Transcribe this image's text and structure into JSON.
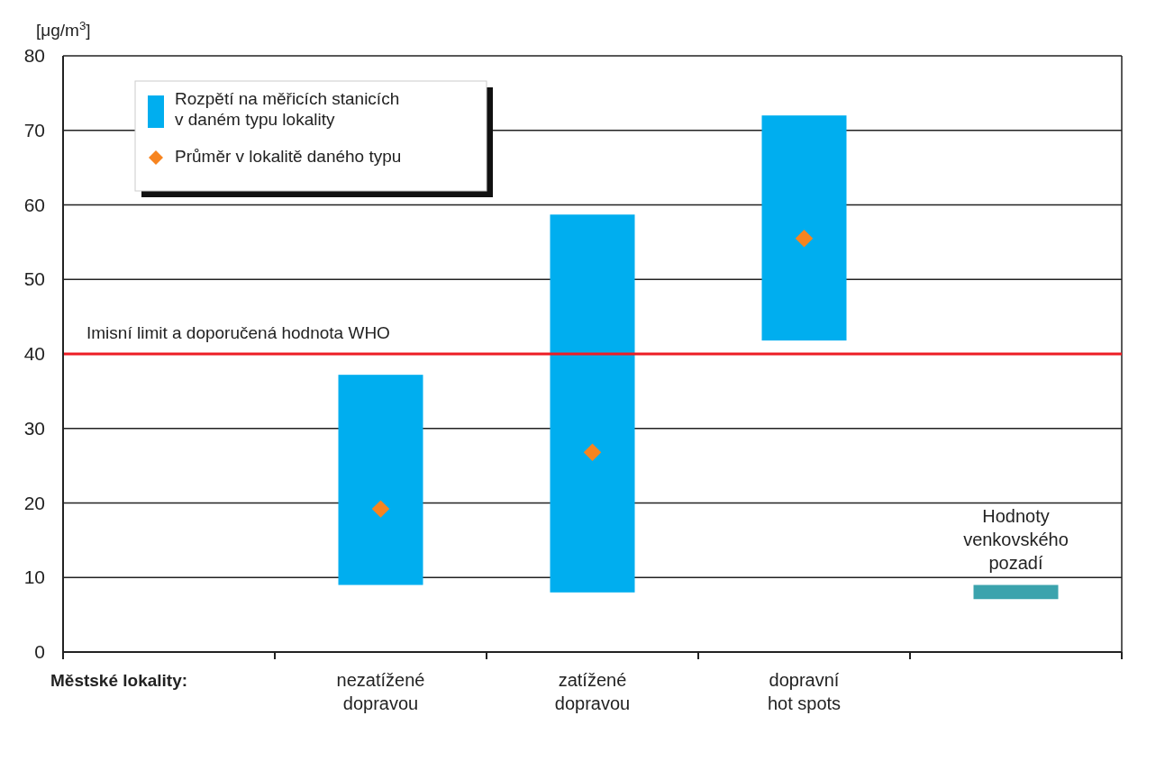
{
  "chart_data": {
    "type": "bar",
    "ylabel": "[μg/m$^{3}$]",
    "xlabel": "Městské lokality:",
    "categories": [
      null,
      "nezatížené\ndopravou",
      "zatížené\ndopravou",
      "dopravní\nhot spots",
      null
    ],
    "series": [
      {
        "name": "Rozpětí na měřicích stanicích\nv daném typu lokality",
        "color": "#00aeef",
        "colors": [
          null,
          "#00aeef",
          "#00aeef",
          "#00aeef",
          "#3ba3ad"
        ],
        "base": [
          null,
          9,
          8,
          41.8,
          7.1
        ],
        "values": [
          null,
          28.2,
          50.7,
          30.2,
          1.9
        ]
      },
      {
        "name": "Průměr v lokalitě daného typu",
        "type": "scatter",
        "color": "#f7841f",
        "marker": "diamond",
        "x": [
          "nezatížené\ndopravou",
          "zatížené\ndopravou",
          "dopravní\nhot spots"
        ],
        "values": [
          19.2,
          26.8,
          55.5
        ]
      }
    ],
    "ylim": [
      0,
      80
    ],
    "yticks": [
      0,
      10,
      20,
      30,
      40,
      50,
      60,
      70,
      80
    ],
    "grid": "y",
    "legend": "top left",
    "ref_lines": [
      {
        "axis": "y",
        "value": 40,
        "label": "Imisní limit a doporučená hodnota WHO",
        "color": "#ed1c24"
      }
    ],
    "annotations": [
      "Hodnoty\nvenkovského\npozadí"
    ]
  }
}
